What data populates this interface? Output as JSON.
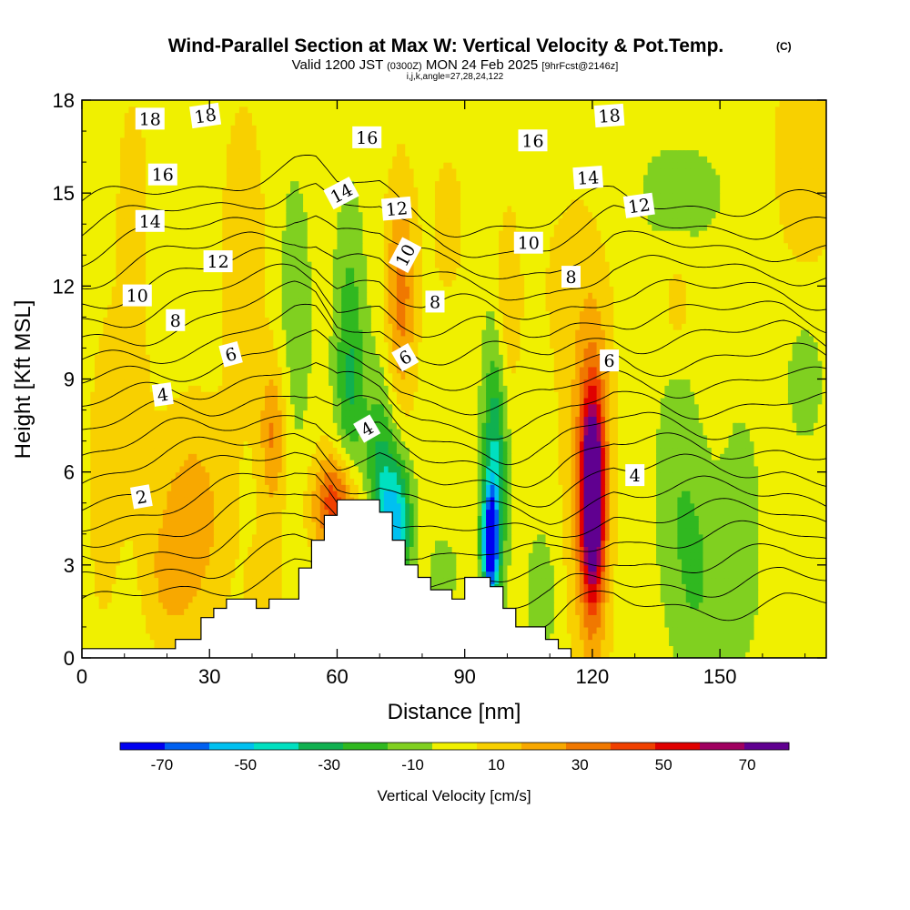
{
  "header": {
    "title": "Wind-Parallel Section at Max W: Vertical Velocity & Pot.Temp.",
    "title_mark": "(C)",
    "valid_prefix": "Valid 1200 JST",
    "valid_utc": "(0300Z)",
    "valid_date": "MON 24 Feb 2025",
    "valid_fcst": "[9hrFcst@2146z]",
    "params": "i,j,k,angle=27,28,24,122"
  },
  "chart_data": {
    "type": "heatmap",
    "xlabel": "Distance [nm]",
    "ylabel": "Height [Kft MSL]",
    "xlim": [
      0,
      175
    ],
    "ylim": [
      0,
      18
    ],
    "x_ticks": [
      0,
      30,
      60,
      90,
      120,
      150
    ],
    "y_ticks": [
      0,
      3,
      6,
      9,
      12,
      15,
      18
    ],
    "colorbar": {
      "label": "Vertical Velocity [cm/s]",
      "bounds": [
        -80,
        80
      ],
      "ticks": [
        -70,
        -50,
        -30,
        -10,
        10,
        30,
        50,
        70
      ],
      "colors": [
        "#0000f0",
        "#0060f0",
        "#00c0f0",
        "#00e0c0",
        "#10b050",
        "#30b820",
        "#80d020",
        "#f0f000",
        "#f8d000",
        "#f8a800",
        "#f07800",
        "#f04000",
        "#e00000",
        "#a00060",
        "#600090"
      ]
    },
    "terrain": [
      [
        0,
        0.3
      ],
      [
        22,
        0.3
      ],
      [
        22,
        0.6
      ],
      [
        28,
        0.6
      ],
      [
        28,
        1.3
      ],
      [
        31,
        1.3
      ],
      [
        31,
        1.6
      ],
      [
        34,
        1.6
      ],
      [
        34,
        1.9
      ],
      [
        41,
        1.9
      ],
      [
        41,
        1.6
      ],
      [
        44,
        1.6
      ],
      [
        44,
        1.9
      ],
      [
        51,
        1.9
      ],
      [
        51,
        2.9
      ],
      [
        54,
        2.9
      ],
      [
        54,
        3.8
      ],
      [
        57,
        3.8
      ],
      [
        57,
        4.6
      ],
      [
        60,
        4.6
      ],
      [
        60,
        5.1
      ],
      [
        70,
        5.1
      ],
      [
        70,
        4.7
      ],
      [
        73,
        4.7
      ],
      [
        73,
        3.8
      ],
      [
        76,
        3.8
      ],
      [
        76,
        3.0
      ],
      [
        79,
        3.0
      ],
      [
        79,
        2.6
      ],
      [
        82,
        2.6
      ],
      [
        82,
        2.2
      ],
      [
        87,
        2.2
      ],
      [
        87,
        1.9
      ],
      [
        90,
        1.9
      ],
      [
        90,
        2.6
      ],
      [
        96,
        2.6
      ],
      [
        96,
        2.3
      ],
      [
        99,
        2.3
      ],
      [
        99,
        1.6
      ],
      [
        102,
        1.6
      ],
      [
        102,
        1.0
      ],
      [
        109,
        1.0
      ],
      [
        109,
        0.6
      ],
      [
        112,
        0.6
      ],
      [
        112,
        0.3
      ],
      [
        115,
        0.3
      ],
      [
        115,
        0.0
      ],
      [
        175,
        0.0
      ]
    ],
    "w_features": [
      {
        "x": 45,
        "z": 7.2,
        "sx": 2.2,
        "sz": 1.8,
        "w": 28
      },
      {
        "x": 43,
        "z": 2.2,
        "sx": 3,
        "sz": 1.2,
        "w": 12
      },
      {
        "x": 26,
        "z": 4.5,
        "sx": 6,
        "sz": 2.5,
        "w": 22
      },
      {
        "x": 20,
        "z": 2.5,
        "sx": 4,
        "sz": 1.5,
        "w": 12
      },
      {
        "x": 60,
        "z": 5.0,
        "sx": 4,
        "sz": 1.2,
        "w": 48
      },
      {
        "x": 75,
        "z": 11.8,
        "sx": 2.5,
        "sz": 2.5,
        "w": 32
      },
      {
        "x": 38,
        "z": 13.0,
        "sx": 4,
        "sz": 3.8,
        "w": 12
      },
      {
        "x": 63,
        "z": 9.0,
        "sx": 2.5,
        "sz": 3.5,
        "w": -28
      },
      {
        "x": 70,
        "z": 5.5,
        "sx": 2.5,
        "sz": 2.5,
        "w": -30
      },
      {
        "x": 74,
        "z": 4.4,
        "sx": 2.5,
        "sz": 1.5,
        "w": -48
      },
      {
        "x": 97,
        "z": 6.0,
        "sx": 2,
        "sz": 3.0,
        "w": -40
      },
      {
        "x": 96,
        "z": 3.7,
        "sx": 1.3,
        "sz": 1.2,
        "w": -70
      },
      {
        "x": 100,
        "z": 11.5,
        "sx": 2,
        "sz": 2.0,
        "w": 15
      },
      {
        "x": 120,
        "z": 5.2,
        "sx": 1.8,
        "sz": 2.3,
        "w": 80
      },
      {
        "x": 120,
        "z": 5.5,
        "sx": 3.8,
        "sz": 4.0,
        "w": 32
      },
      {
        "x": 127,
        "z": 5.5,
        "sx": 3,
        "sz": 4.0,
        "w": -6
      },
      {
        "x": 140,
        "z": 5.5,
        "sx": 4,
        "sz": 3.0,
        "w": -12
      },
      {
        "x": 155,
        "z": 3.8,
        "sx": 3.5,
        "sz": 3.0,
        "w": -12
      },
      {
        "x": 170,
        "z": 9.0,
        "sx": 3,
        "sz": 1.5,
        "w": -12
      },
      {
        "x": 170,
        "z": 16.0,
        "sx": 6,
        "sz": 2.5,
        "w": 14
      },
      {
        "x": 10,
        "z": 8.0,
        "sx": 4,
        "sz": 2.5,
        "w": 14
      },
      {
        "x": 86,
        "z": 14.0,
        "sx": 3,
        "sz": 1.8,
        "w": 10
      },
      {
        "x": 140,
        "z": 11.5,
        "sx": 2,
        "sz": 1.0,
        "w": 14
      },
      {
        "x": 115,
        "z": 12.5,
        "sx": 8,
        "sz": 3.5,
        "w": 7
      },
      {
        "x": 50,
        "z": 11.0,
        "sx": 3,
        "sz": 3.5,
        "w": -12
      },
      {
        "x": 140,
        "z": 15.0,
        "sx": 14,
        "sz": 2.0,
        "w": -7
      },
      {
        "x": 145,
        "z": 2.5,
        "sx": 4,
        "sz": 2.5,
        "w": -14
      },
      {
        "x": 85,
        "z": 2.8,
        "sx": 2.5,
        "sz": 0.8,
        "w": -12
      },
      {
        "x": 108,
        "z": 2.0,
        "sx": 2.5,
        "sz": 1.5,
        "w": -14
      },
      {
        "x": 5,
        "z": 5.0,
        "sx": 2.5,
        "sz": 3.0,
        "w": 10
      },
      {
        "x": 12,
        "z": 15.0,
        "sx": 3,
        "sz": 2.5,
        "w": 10
      }
    ],
    "theta_contours": {
      "levels": [
        1,
        2,
        3,
        4,
        5,
        6,
        7,
        8,
        9,
        10,
        11,
        12,
        13,
        14,
        15,
        16,
        17,
        18,
        19
      ],
      "baseline_height": [
        [
          0,
          5.0
        ],
        [
          20,
          5.6
        ],
        [
          30,
          5.8
        ],
        [
          40,
          6.2
        ],
        [
          50,
          6.5
        ],
        [
          55,
          6.4
        ],
        [
          60,
          5.7
        ],
        [
          65,
          5.7
        ],
        [
          70,
          5.6
        ],
        [
          75,
          5.0
        ],
        [
          80,
          4.7
        ],
        [
          85,
          4.6
        ],
        [
          90,
          4.6
        ],
        [
          95,
          4.6
        ],
        [
          100,
          4.5
        ],
        [
          105,
          4.5
        ],
        [
          110,
          4.6
        ],
        [
          115,
          4.9
        ],
        [
          120,
          5.1
        ],
        [
          125,
          5.3
        ],
        [
          130,
          5.2
        ],
        [
          140,
          5.2
        ],
        [
          150,
          5.2
        ],
        [
          165,
          5.3
        ],
        [
          175,
          5.1
        ]
      ],
      "spacing": 0.72
    },
    "contour_labels": [
      {
        "text": "18",
        "x": 16,
        "z": 17.4,
        "angle": 0
      },
      {
        "text": "18",
        "x": 29,
        "z": 17.5,
        "angle": -8
      },
      {
        "text": "16",
        "x": 19,
        "z": 15.6,
        "angle": 0
      },
      {
        "text": "14",
        "x": 16,
        "z": 14.1,
        "angle": 0
      },
      {
        "text": "12",
        "x": 32,
        "z": 12.8,
        "angle": 0
      },
      {
        "text": "10",
        "x": 13,
        "z": 11.7,
        "angle": 0
      },
      {
        "text": "8",
        "x": 22,
        "z": 10.9,
        "angle": 0
      },
      {
        "text": "6",
        "x": 35,
        "z": 9.8,
        "angle": -15
      },
      {
        "text": "4",
        "x": 19,
        "z": 8.5,
        "angle": -8
      },
      {
        "text": "2",
        "x": 14,
        "z": 5.2,
        "angle": -10
      },
      {
        "text": "16",
        "x": 67,
        "z": 16.8,
        "angle": 0
      },
      {
        "text": "14",
        "x": 61,
        "z": 15.0,
        "angle": -28
      },
      {
        "text": "12",
        "x": 74,
        "z": 14.5,
        "angle": -5
      },
      {
        "text": "10",
        "x": 76,
        "z": 13.0,
        "angle": -62
      },
      {
        "text": "8",
        "x": 83,
        "z": 11.5,
        "angle": 0
      },
      {
        "text": "6",
        "x": 76,
        "z": 9.7,
        "angle": -30
      },
      {
        "text": "4",
        "x": 67,
        "z": 7.4,
        "angle": -30
      },
      {
        "text": "16",
        "x": 106,
        "z": 16.7,
        "angle": 0
      },
      {
        "text": "18",
        "x": 124,
        "z": 17.5,
        "angle": -4
      },
      {
        "text": "14",
        "x": 119,
        "z": 15.5,
        "angle": -4
      },
      {
        "text": "12",
        "x": 131,
        "z": 14.6,
        "angle": -8
      },
      {
        "text": "10",
        "x": 105,
        "z": 13.4,
        "angle": 0
      },
      {
        "text": "8",
        "x": 115,
        "z": 12.3,
        "angle": 0
      },
      {
        "text": "6",
        "x": 124,
        "z": 9.6,
        "angle": 0
      },
      {
        "text": "4",
        "x": 130,
        "z": 5.9,
        "angle": 0
      }
    ]
  }
}
